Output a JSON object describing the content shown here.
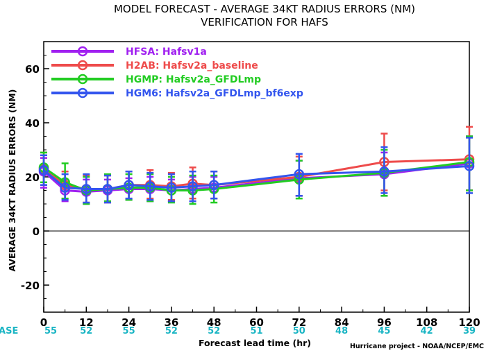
{
  "chart_data": {
    "type": "line",
    "title": "MODEL FORECAST - AVERAGE 34KT RADIUS ERRORS (NM)",
    "subtitle": "VERIFICATION FOR HAFS",
    "xlabel": "Forecast lead time (hr)",
    "ylabel": "AVERAGE 34KT RADIUS ERRORS (NM)",
    "xlim": [
      0,
      120
    ],
    "ylim": [
      -30,
      70
    ],
    "x_ticks": [
      0,
      12,
      24,
      36,
      48,
      60,
      72,
      84,
      96,
      108,
      120
    ],
    "y_ticks": [
      -20,
      0,
      20,
      40,
      60
    ],
    "grid": false,
    "zero_line": true,
    "legend_position": "top-left",
    "case_label": "#CASE",
    "cases": [
      {
        "x": 0,
        "n": "55"
      },
      {
        "x": 12,
        "n": "52"
      },
      {
        "x": 24,
        "n": "55"
      },
      {
        "x": 36,
        "n": "52"
      },
      {
        "x": 48,
        "n": "52"
      },
      {
        "x": 60,
        "n": "51"
      },
      {
        "x": 72,
        "n": "50"
      },
      {
        "x": 84,
        "n": "48"
      },
      {
        "x": 96,
        "n": "45"
      },
      {
        "x": 108,
        "n": "42"
      },
      {
        "x": 120,
        "n": "39"
      }
    ],
    "credit": "Hurricane project - NOAA/NCEP/EMC",
    "series": [
      {
        "name": "HFSA: Hafsv1a",
        "color": "#a020f0",
        "points": [
          {
            "x": 0,
            "y": 22,
            "lo": 16,
            "hi": 27
          },
          {
            "x": 6,
            "y": 15,
            "lo": 11,
            "hi": 19
          },
          {
            "x": 12,
            "y": 14.5,
            "lo": 10,
            "hi": 19
          },
          {
            "x": 18,
            "y": 15,
            "lo": 11,
            "hi": 19
          },
          {
            "x": 24,
            "y": 15.5,
            "lo": 11.5,
            "hi": 19.5
          },
          {
            "x": 30,
            "y": 15.5,
            "lo": 11,
            "hi": 20
          },
          {
            "x": 36,
            "y": 15,
            "lo": 11,
            "hi": 19
          },
          {
            "x": 42,
            "y": 15.5,
            "lo": 11,
            "hi": 20
          },
          {
            "x": 48,
            "y": 16,
            "lo": 12,
            "hi": 20
          },
          {
            "x": 72,
            "y": 19.5,
            "lo": 13,
            "hi": 26
          },
          {
            "x": 96,
            "y": 21,
            "lo": 13,
            "hi": 29
          },
          {
            "x": 120,
            "y": 25,
            "lo": 15,
            "hi": 35
          }
        ]
      },
      {
        "name": "H2AB: Hafsv2a_baseline",
        "color": "#ee4b4b",
        "points": [
          {
            "x": 0,
            "y": 23,
            "lo": 17,
            "hi": 29
          },
          {
            "x": 6,
            "y": 17,
            "lo": 12,
            "hi": 22
          },
          {
            "x": 12,
            "y": 15.5,
            "lo": 10.5,
            "hi": 20.5
          },
          {
            "x": 18,
            "y": 15.5,
            "lo": 10.5,
            "hi": 20.5
          },
          {
            "x": 24,
            "y": 17,
            "lo": 12,
            "hi": 22
          },
          {
            "x": 30,
            "y": 17,
            "lo": 12,
            "hi": 22.5
          },
          {
            "x": 36,
            "y": 16.5,
            "lo": 11.5,
            "hi": 21.5
          },
          {
            "x": 42,
            "y": 17.5,
            "lo": 12,
            "hi": 23.5
          },
          {
            "x": 48,
            "y": 17,
            "lo": 12,
            "hi": 22
          },
          {
            "x": 72,
            "y": 20,
            "lo": 13,
            "hi": 27.5
          },
          {
            "x": 96,
            "y": 25.5,
            "lo": 15,
            "hi": 36
          },
          {
            "x": 120,
            "y": 26.5,
            "lo": 15,
            "hi": 38.5
          }
        ]
      },
      {
        "name": "HGMP: Hafsv2a_GFDLmp",
        "color": "#22cc22",
        "points": [
          {
            "x": 0,
            "y": 23.5,
            "lo": 18,
            "hi": 29
          },
          {
            "x": 6,
            "y": 18,
            "lo": 12,
            "hi": 25
          },
          {
            "x": 12,
            "y": 15,
            "lo": 10,
            "hi": 20
          },
          {
            "x": 18,
            "y": 15.5,
            "lo": 11,
            "hi": 21
          },
          {
            "x": 24,
            "y": 16,
            "lo": 11.5,
            "hi": 21
          },
          {
            "x": 30,
            "y": 16,
            "lo": 11,
            "hi": 21
          },
          {
            "x": 36,
            "y": 15,
            "lo": 10.5,
            "hi": 20
          },
          {
            "x": 42,
            "y": 15,
            "lo": 10,
            "hi": 20.5
          },
          {
            "x": 48,
            "y": 15.5,
            "lo": 10.5,
            "hi": 20.5
          },
          {
            "x": 72,
            "y": 19,
            "lo": 12,
            "hi": 26
          },
          {
            "x": 96,
            "y": 21.5,
            "lo": 13,
            "hi": 30
          },
          {
            "x": 120,
            "y": 25.5,
            "lo": 15,
            "hi": 35
          }
        ]
      },
      {
        "name": "HGM6: Hafsv2a_GFDLmp_bf6exp",
        "color": "#3355ee",
        "points": [
          {
            "x": 0,
            "y": 22.5,
            "lo": 17,
            "hi": 28
          },
          {
            "x": 6,
            "y": 16,
            "lo": 11.5,
            "hi": 21
          },
          {
            "x": 12,
            "y": 15.5,
            "lo": 10.5,
            "hi": 21
          },
          {
            "x": 18,
            "y": 15.5,
            "lo": 10.5,
            "hi": 20.5
          },
          {
            "x": 24,
            "y": 17,
            "lo": 12,
            "hi": 22
          },
          {
            "x": 30,
            "y": 16.5,
            "lo": 11.5,
            "hi": 21.5
          },
          {
            "x": 36,
            "y": 16,
            "lo": 11,
            "hi": 21
          },
          {
            "x": 42,
            "y": 16.5,
            "lo": 11,
            "hi": 22
          },
          {
            "x": 48,
            "y": 17,
            "lo": 12,
            "hi": 22
          },
          {
            "x": 72,
            "y": 21,
            "lo": 13,
            "hi": 28.5
          },
          {
            "x": 96,
            "y": 22,
            "lo": 14,
            "hi": 31
          },
          {
            "x": 120,
            "y": 24,
            "lo": 14,
            "hi": 34.5
          }
        ]
      }
    ]
  }
}
